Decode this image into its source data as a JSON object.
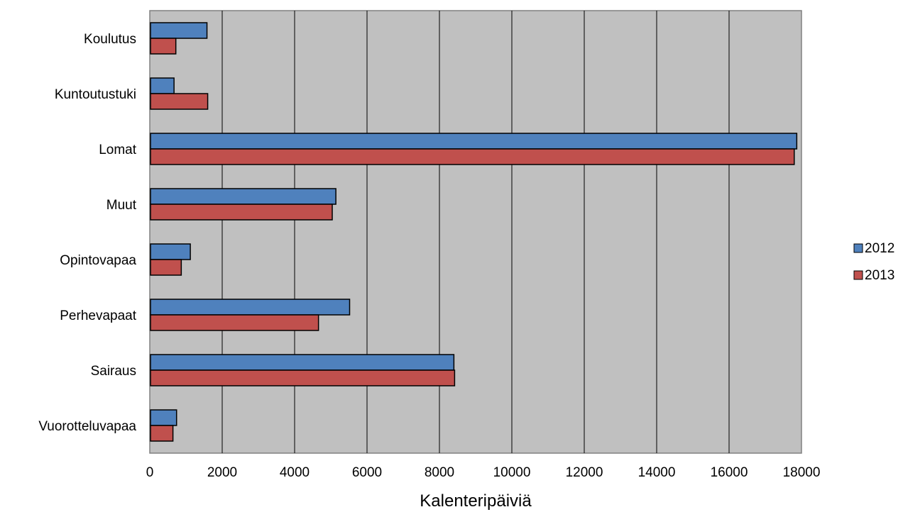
{
  "chart_data": {
    "type": "bar",
    "orientation": "horizontal",
    "categories": [
      "Koulutus",
      "Kuntoutustuki",
      "Lomat",
      "Muut",
      "Opintovapaa",
      "Perhevapaat",
      "Sairaus",
      "Vuorotteluvapaa"
    ],
    "series": [
      {
        "name": "2012",
        "color": "#4F81BD",
        "values": [
          1560,
          650,
          17850,
          5120,
          1100,
          5500,
          8380,
          720
        ]
      },
      {
        "name": "2013",
        "color": "#C0504D",
        "values": [
          700,
          1580,
          17780,
          5020,
          850,
          4640,
          8400,
          620
        ]
      }
    ],
    "xlabel": "Kalenteripäiviä",
    "ylabel": "",
    "xlim": [
      0,
      18000
    ],
    "xticks": [
      "0",
      "2000",
      "4000",
      "6000",
      "8000",
      "10000",
      "12000",
      "14000",
      "16000",
      "18000"
    ],
    "grid": "vertical",
    "plot_background": "#C0C0C0",
    "legend_position": "right"
  }
}
